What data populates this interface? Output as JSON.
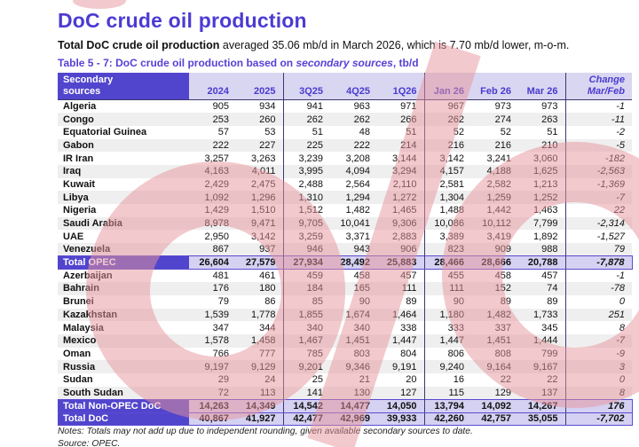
{
  "header": {
    "title": "DoC crude oil production",
    "subtitle_bold": "Total DoC crude oil production",
    "subtitle_rest": " averaged 35.06 mb/d in March 2026, which is 7.70 mb/d lower, m-o-m.",
    "caption_prefix": "Table 5 - 7: DoC crude oil production based on ",
    "caption_emphasis": "secondary sources",
    "caption_suffix": ", tb/d"
  },
  "table": {
    "row_header_line1": "Secondary",
    "row_header_line2": "sources",
    "columns": [
      "2024",
      "2025",
      "3Q25",
      "4Q25",
      "1Q26",
      "Jan 26",
      "Feb 26",
      "Mar 26"
    ],
    "change_header_line1": "Change",
    "change_header_line2": "Mar/Feb",
    "rows": [
      {
        "name": "Algeria",
        "type": "country",
        "values": [
          "905",
          "934",
          "941",
          "963",
          "971",
          "967",
          "973",
          "973"
        ],
        "change": "-1"
      },
      {
        "name": "Congo",
        "type": "country",
        "values": [
          "253",
          "260",
          "262",
          "262",
          "266",
          "262",
          "274",
          "263"
        ],
        "change": "-11"
      },
      {
        "name": "Equatorial Guinea",
        "type": "country",
        "values": [
          "57",
          "53",
          "51",
          "48",
          "51",
          "52",
          "52",
          "51"
        ],
        "change": "-2"
      },
      {
        "name": "Gabon",
        "type": "country",
        "values": [
          "222",
          "227",
          "225",
          "222",
          "214",
          "216",
          "216",
          "210"
        ],
        "change": "-5"
      },
      {
        "name": "IR Iran",
        "type": "country",
        "values": [
          "3,257",
          "3,263",
          "3,239",
          "3,208",
          "3,144",
          "3,142",
          "3,241",
          "3,060"
        ],
        "change": "-182"
      },
      {
        "name": "Iraq",
        "type": "country",
        "values": [
          "4,163",
          "4,011",
          "3,995",
          "4,094",
          "3,294",
          "4,157",
          "4,188",
          "1,625"
        ],
        "change": "-2,563"
      },
      {
        "name": "Kuwait",
        "type": "country",
        "values": [
          "2,429",
          "2,475",
          "2,488",
          "2,564",
          "2,110",
          "2,581",
          "2,582",
          "1,213"
        ],
        "change": "-1,369"
      },
      {
        "name": "Libya",
        "type": "country",
        "values": [
          "1,092",
          "1,296",
          "1,310",
          "1,294",
          "1,272",
          "1,304",
          "1,259",
          "1,252"
        ],
        "change": "-7"
      },
      {
        "name": "Nigeria",
        "type": "country",
        "values": [
          "1,429",
          "1,510",
          "1,512",
          "1,482",
          "1,465",
          "1,488",
          "1,442",
          "1,463"
        ],
        "change": "22"
      },
      {
        "name": "Saudi Arabia",
        "type": "country",
        "values": [
          "8,978",
          "9,471",
          "9,705",
          "10,041",
          "9,306",
          "10,086",
          "10,112",
          "7,799"
        ],
        "change": "-2,314"
      },
      {
        "name": "UAE",
        "type": "country",
        "values": [
          "2,950",
          "3,142",
          "3,259",
          "3,371",
          "2,883",
          "3,389",
          "3,419",
          "1,892"
        ],
        "change": "-1,527"
      },
      {
        "name": "Venezuela",
        "type": "country",
        "values": [
          "867",
          "937",
          "946",
          "943",
          "906",
          "823",
          "909",
          "988"
        ],
        "change": "79"
      },
      {
        "name": "Total  OPEC",
        "type": "total",
        "values": [
          "26,604",
          "27,579",
          "27,934",
          "28,492",
          "25,883",
          "28,466",
          "28,666",
          "20,788"
        ],
        "change": "-7,878"
      },
      {
        "name": "Azerbaijan",
        "type": "country",
        "values": [
          "481",
          "461",
          "459",
          "458",
          "457",
          "455",
          "458",
          "457"
        ],
        "change": "-1"
      },
      {
        "name": "Bahrain",
        "type": "country",
        "values": [
          "176",
          "180",
          "184",
          "165",
          "111",
          "111",
          "152",
          "74"
        ],
        "change": "-78"
      },
      {
        "name": "Brunei",
        "type": "country",
        "values": [
          "79",
          "86",
          "85",
          "90",
          "89",
          "90",
          "89",
          "89"
        ],
        "change": "0"
      },
      {
        "name": "Kazakhstan",
        "type": "country",
        "values": [
          "1,539",
          "1,778",
          "1,855",
          "1,674",
          "1,464",
          "1,180",
          "1,482",
          "1,733"
        ],
        "change": "251"
      },
      {
        "name": "Malaysia",
        "type": "country",
        "values": [
          "347",
          "344",
          "340",
          "340",
          "338",
          "333",
          "337",
          "345"
        ],
        "change": "8"
      },
      {
        "name": "Mexico",
        "type": "country",
        "values": [
          "1,578",
          "1,458",
          "1,467",
          "1,451",
          "1,447",
          "1,447",
          "1,451",
          "1,444"
        ],
        "change": "-7"
      },
      {
        "name": "Oman",
        "type": "country",
        "values": [
          "766",
          "777",
          "785",
          "803",
          "804",
          "806",
          "808",
          "799"
        ],
        "change": "-9"
      },
      {
        "name": "Russia",
        "type": "country",
        "values": [
          "9,197",
          "9,129",
          "9,201",
          "9,346",
          "9,191",
          "9,240",
          "9,164",
          "9,167"
        ],
        "change": "3"
      },
      {
        "name": "Sudan",
        "type": "country",
        "values": [
          "29",
          "24",
          "25",
          "21",
          "20",
          "16",
          "22",
          "22"
        ],
        "change": "0"
      },
      {
        "name": "South Sudan",
        "type": "country",
        "values": [
          "72",
          "113",
          "141",
          "130",
          "127",
          "115",
          "129",
          "137"
        ],
        "change": "8"
      },
      {
        "name": "Total Non-OPEC DoC",
        "type": "total",
        "values": [
          "14,263",
          "14,349",
          "14,542",
          "14,477",
          "14,050",
          "13,794",
          "14,092",
          "14,267"
        ],
        "change": "176"
      },
      {
        "name": "Total DoC",
        "type": "total",
        "values": [
          "40,867",
          "41,927",
          "42,477",
          "42,969",
          "39,933",
          "42,260",
          "42,757",
          "35,055"
        ],
        "change": "-7,702"
      }
    ]
  },
  "footer": {
    "notes": "Notes: Totals may not add up due to independent rounding, given available secondary sources to date.",
    "source": "Source: OPEC."
  },
  "colors": {
    "accent_purple": "#5245cd",
    "title_purple": "#4c3bd2",
    "header_lavender": "#d9d6f2",
    "total_lavender": "#d5d1f2",
    "stripe_gray": "#efefef",
    "grid_line": "#3c3870",
    "watermark_pink": "#e7959c"
  }
}
